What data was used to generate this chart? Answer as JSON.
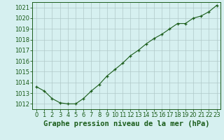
{
  "x": [
    0,
    1,
    2,
    3,
    4,
    5,
    6,
    7,
    8,
    9,
    10,
    11,
    12,
    13,
    14,
    15,
    16,
    17,
    18,
    19,
    20,
    21,
    22,
    23
  ],
  "y": [
    1013.6,
    1013.2,
    1012.5,
    1012.1,
    1012.0,
    1012.0,
    1012.5,
    1013.2,
    1013.8,
    1014.6,
    1015.2,
    1015.8,
    1016.5,
    1017.0,
    1017.6,
    1018.1,
    1018.5,
    1019.0,
    1019.5,
    1019.5,
    1020.0,
    1020.2,
    1020.6,
    1021.2
  ],
  "ylim": [
    1011.5,
    1021.5
  ],
  "yticks": [
    1012,
    1013,
    1014,
    1015,
    1016,
    1017,
    1018,
    1019,
    1020,
    1021
  ],
  "xlim": [
    -0.5,
    23.5
  ],
  "xlabel": "Graphe pression niveau de la mer (hPa)",
  "line_color": "#1a5c1a",
  "marker": "+",
  "background_color": "#d6f0f0",
  "grid_color": "#b0c8c8",
  "label_fontsize": 6.0,
  "xlabel_fontsize": 7.5
}
